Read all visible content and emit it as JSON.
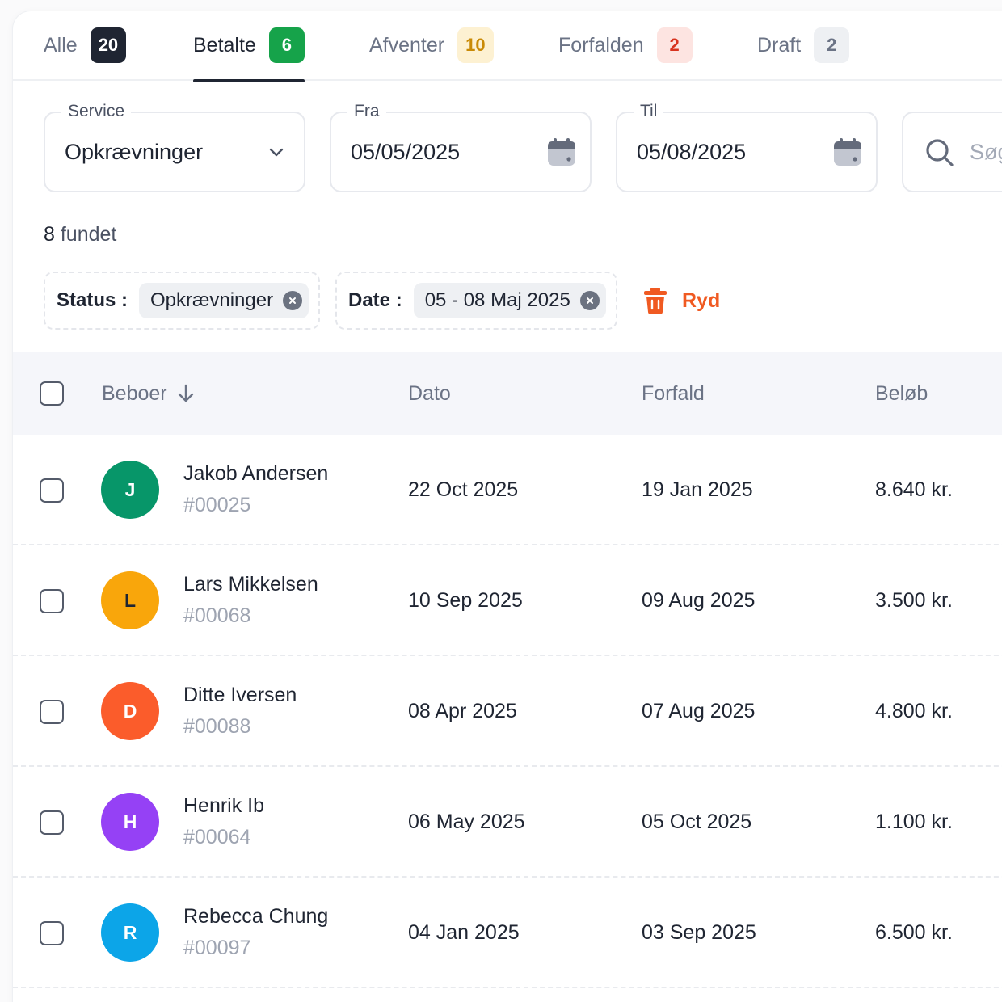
{
  "tabs": [
    {
      "label": "Alle",
      "count": "20",
      "badge_bg": "#1f2532",
      "badge_fg": "#ffffff",
      "active": false
    },
    {
      "label": "Betalte",
      "count": "6",
      "badge_bg": "#16a34a",
      "badge_fg": "#ffffff",
      "active": true
    },
    {
      "label": "Afventer",
      "count": "10",
      "badge_bg": "#fdf1d2",
      "badge_fg": "#c98a06",
      "active": false
    },
    {
      "label": "Forfalden",
      "count": "2",
      "badge_bg": "#fde4e1",
      "badge_fg": "#d8331f",
      "active": false
    },
    {
      "label": "Draft",
      "count": "2",
      "badge_bg": "#eef0f3",
      "badge_fg": "#6b7385",
      "active": false
    }
  ],
  "filters": {
    "service": {
      "label": "Service",
      "value": "Opkrævninger"
    },
    "from": {
      "label": "Fra",
      "value": "05/05/2025"
    },
    "to": {
      "label": "Til",
      "value": "05/08/2025"
    },
    "search": {
      "placeholder": "Søg"
    }
  },
  "results": {
    "count": "8",
    "suffix": " fundet"
  },
  "active_filters": {
    "status": {
      "key": "Status :",
      "value": "Opkrævninger"
    },
    "date": {
      "key": "Date :",
      "value": "05 - 08 Maj 2025"
    },
    "clear_label": "Ryd"
  },
  "table": {
    "headers": {
      "resident": "Beboer",
      "date": "Dato",
      "due": "Forfald",
      "amount": "Beløb"
    },
    "rows": [
      {
        "initial": "J",
        "color": "#079669",
        "name": "Jakob Andersen",
        "id": "#00025",
        "date": "22 Oct 2025",
        "due": "19 Jan 2025",
        "amount": "8.640 kr."
      },
      {
        "initial": "L",
        "color": "#f9a60b",
        "name": "Lars Mikkelsen",
        "id": "#00068",
        "date": "10 Sep 2025",
        "due": "09 Aug 2025",
        "amount": "3.500 kr."
      },
      {
        "initial": "D",
        "color": "#fb5c2b",
        "name": "Ditte Iversen",
        "id": "#00088",
        "date": "08 Apr 2025",
        "due": "07 Aug 2025",
        "amount": "4.800 kr."
      },
      {
        "initial": "H",
        "color": "#9541f5",
        "name": "Henrik Ib",
        "id": "#00064",
        "date": "06 May 2025",
        "due": "05 Oct 2025",
        "amount": "1.100 kr."
      },
      {
        "initial": "R",
        "color": "#0ca5e8",
        "name": "Rebecca Chung",
        "id": "#00097",
        "date": "04 Jan 2025",
        "due": "03 Sep 2025",
        "amount": "6.500 kr."
      }
    ]
  }
}
